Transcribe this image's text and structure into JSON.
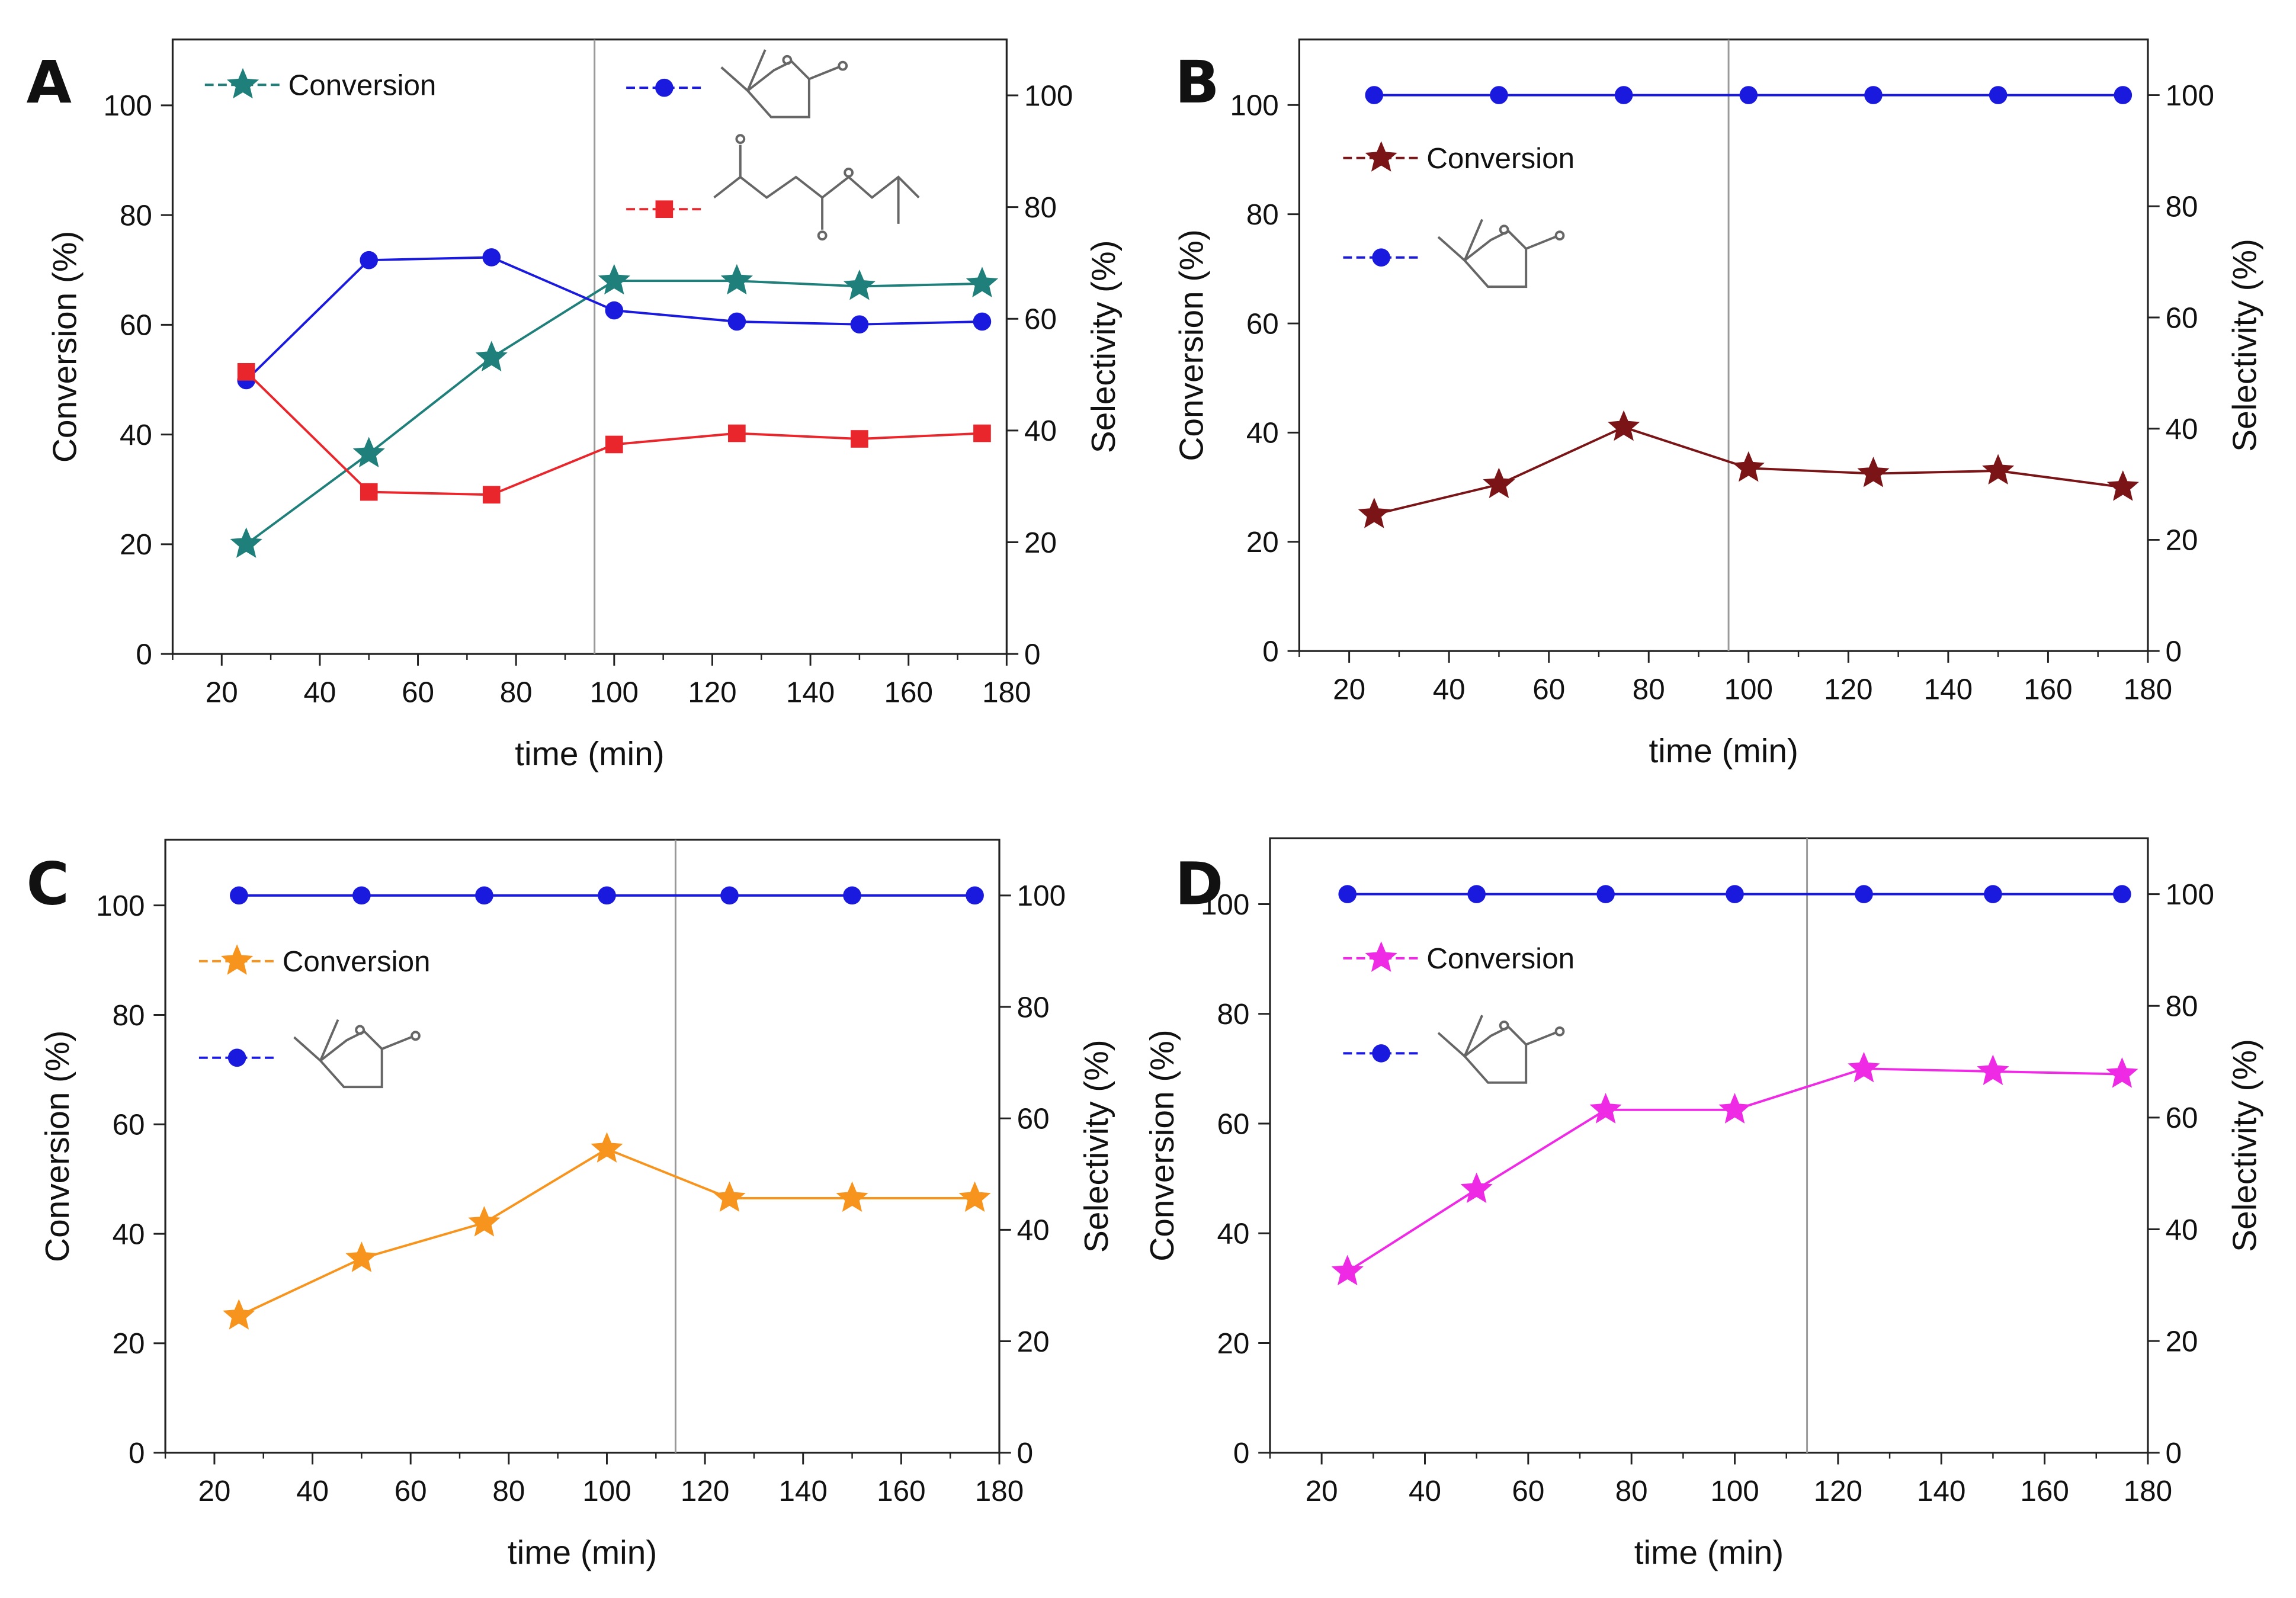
{
  "figure": {
    "description_free": true
  },
  "chart_data": [
    {
      "panel": "A",
      "type": "line",
      "xlabel": "time (min)",
      "ylabel_left": "Conversion (%)",
      "ylabel_right": "Selectivity (%)",
      "xlim": [
        10,
        180
      ],
      "xticks": [
        20,
        40,
        60,
        80,
        100,
        120,
        140,
        160,
        180
      ],
      "ylim_left": [
        0,
        112
      ],
      "yticks_left": [
        0,
        20,
        40,
        60,
        80,
        100
      ],
      "ylim_right": [
        0,
        110
      ],
      "yticks_right": [
        0,
        20,
        40,
        60,
        80,
        100
      ],
      "divider_x": 96,
      "x": [
        25,
        50,
        75,
        100,
        125,
        150,
        175
      ],
      "series": [
        {
          "name": "Conversion",
          "axis": "left",
          "marker": "star",
          "color": "#1f7f7a",
          "values": [
            20,
            36.5,
            54,
            68,
            68,
            67,
            67.5
          ]
        },
        {
          "name": "gamma-valerolactone",
          "axis": "right",
          "marker": "circle",
          "color": "#1a1adf",
          "values": [
            49,
            70.5,
            71,
            61.5,
            59.5,
            59,
            59.5
          ]
        },
        {
          "name": "isopropyl levulinate",
          "axis": "right",
          "marker": "square",
          "color": "#e8262c",
          "values": [
            50.5,
            29,
            28.5,
            37.5,
            39.5,
            38.5,
            39.5
          ]
        }
      ],
      "legend": [
        {
          "label": "Conversion",
          "marker": "star",
          "color": "#1f7f7a",
          "structure": "none"
        },
        {
          "label": "",
          "marker": "circle",
          "color": "#1a1adf",
          "structure": "gvl"
        },
        {
          "label": "",
          "marker": "square",
          "color": "#e8262c",
          "structure": "ester"
        }
      ]
    },
    {
      "panel": "B",
      "type": "line",
      "xlabel": "time (min)",
      "ylabel_left": "Conversion (%)",
      "ylabel_right": "Selectivity (%)",
      "xlim": [
        10,
        180
      ],
      "xticks": [
        20,
        40,
        60,
        80,
        100,
        120,
        140,
        160,
        180
      ],
      "ylim_left": [
        0,
        112
      ],
      "yticks_left": [
        0,
        20,
        40,
        60,
        80,
        100
      ],
      "ylim_right": [
        0,
        110
      ],
      "yticks_right": [
        0,
        20,
        40,
        60,
        80,
        100
      ],
      "divider_x": 96,
      "x": [
        25,
        50,
        75,
        100,
        125,
        150,
        175
      ],
      "series": [
        {
          "name": "Conversion",
          "axis": "left",
          "marker": "star",
          "color": "#7a1416",
          "values": [
            25,
            30.5,
            41,
            33.5,
            32.5,
            33,
            30
          ]
        },
        {
          "name": "gamma-valerolactone",
          "axis": "right",
          "marker": "circle",
          "color": "#1a1adf",
          "values": [
            100,
            100,
            100,
            100,
            100,
            100,
            100
          ]
        }
      ],
      "legend": [
        {
          "label": "Conversion",
          "marker": "star",
          "color": "#7a1416",
          "structure": "none"
        },
        {
          "label": "",
          "marker": "circle",
          "color": "#1a1adf",
          "structure": "gvl"
        }
      ]
    },
    {
      "panel": "C",
      "type": "line",
      "xlabel": "time (min)",
      "ylabel_left": "Conversion (%)",
      "ylabel_right": "Selectivity (%)",
      "xlim": [
        10,
        180
      ],
      "xticks": [
        20,
        40,
        60,
        80,
        100,
        120,
        140,
        160,
        180
      ],
      "ylim_left": [
        0,
        112
      ],
      "yticks_left": [
        0,
        20,
        40,
        60,
        80,
        100
      ],
      "ylim_right": [
        0,
        110
      ],
      "yticks_right": [
        0,
        20,
        40,
        60,
        80,
        100
      ],
      "divider_x": 114,
      "x": [
        25,
        50,
        75,
        100,
        125,
        150,
        175
      ],
      "series": [
        {
          "name": "Conversion",
          "axis": "left",
          "marker": "star",
          "color": "#f7941d",
          "values": [
            25,
            35.5,
            42,
            55.5,
            46.5,
            46.5,
            46.5
          ]
        },
        {
          "name": "gamma-valerolactone",
          "axis": "right",
          "marker": "circle",
          "color": "#1a1adf",
          "values": [
            100,
            100,
            100,
            100,
            100,
            100,
            100
          ]
        }
      ],
      "legend": [
        {
          "label": "Conversion",
          "marker": "star",
          "color": "#f7941d",
          "structure": "none"
        },
        {
          "label": "",
          "marker": "circle",
          "color": "#1a1adf",
          "structure": "gvl"
        }
      ]
    },
    {
      "panel": "D",
      "type": "line",
      "xlabel": "time (min)",
      "ylabel_left": "Conversion (%)",
      "ylabel_right": "Selectivity (%)",
      "xlim": [
        10,
        180
      ],
      "xticks": [
        20,
        40,
        60,
        80,
        100,
        120,
        140,
        160,
        180
      ],
      "ylim_left": [
        0,
        112
      ],
      "yticks_left": [
        0,
        20,
        40,
        60,
        80,
        100
      ],
      "ylim_right": [
        0,
        110
      ],
      "yticks_right": [
        0,
        20,
        40,
        60,
        80,
        100
      ],
      "divider_x": 114,
      "x": [
        25,
        50,
        75,
        100,
        125,
        150,
        175
      ],
      "series": [
        {
          "name": "Conversion",
          "axis": "left",
          "marker": "star",
          "color": "#ee2ae5",
          "values": [
            33,
            48,
            62.5,
            62.5,
            70,
            69.5,
            69
          ]
        },
        {
          "name": "gamma-valerolactone",
          "axis": "right",
          "marker": "circle",
          "color": "#1a1adf",
          "values": [
            100,
            100,
            100,
            100,
            100,
            100,
            100
          ]
        }
      ],
      "legend": [
        {
          "label": "Conversion",
          "marker": "star",
          "color": "#ee2ae5",
          "structure": "none"
        },
        {
          "label": "",
          "marker": "circle",
          "color": "#1a1adf",
          "structure": "gvl"
        }
      ]
    }
  ]
}
